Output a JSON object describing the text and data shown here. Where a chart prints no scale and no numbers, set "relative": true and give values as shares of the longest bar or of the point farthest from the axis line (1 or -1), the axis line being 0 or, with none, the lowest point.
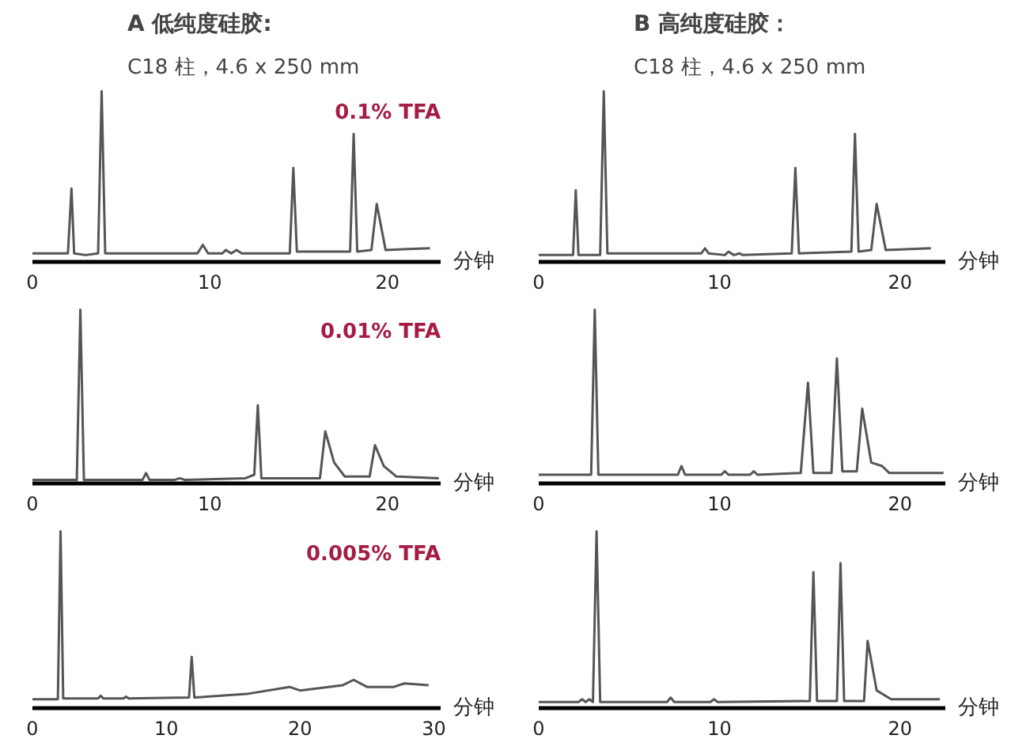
{
  "chart_data": [
    {
      "type": "line",
      "relative": true,
      "title": "A 低纯度硅胶:",
      "subtitle": "C18 柱，4.6 x 250 mm",
      "annotations": [
        "0.1% TFA"
      ],
      "xlabel": "分钟",
      "xlim": [
        0,
        23
      ],
      "xticks": [
        0,
        10,
        20
      ],
      "series": [
        {
          "color": "#555555",
          "x": [
            0,
            2.0,
            2.2,
            2.35,
            3.0,
            3.7,
            3.9,
            4.1,
            9.3,
            9.6,
            9.9,
            10.7,
            10.9,
            11.2,
            11.5,
            11.8,
            14.5,
            14.7,
            14.9,
            17.9,
            18.1,
            18.3,
            19.1,
            19.4,
            19.9,
            22.4
          ],
          "values": [
            0.05,
            0.05,
            0.43,
            0.05,
            0.04,
            0.05,
            1,
            0.05,
            0.05,
            0.1,
            0.05,
            0.05,
            0.07,
            0.05,
            0.07,
            0.05,
            0.05,
            0.55,
            0.06,
            0.06,
            0.75,
            0.06,
            0.07,
            0.34,
            0.07,
            0.08
          ]
        }
      ]
    },
    {
      "type": "line",
      "relative": true,
      "title": "B 高纯度硅胶：",
      "subtitle": "C18 柱，4.6 x 250 mm",
      "xlabel": "分钟",
      "xlim": [
        0,
        22.5
      ],
      "xticks": [
        0,
        10,
        20
      ],
      "series": [
        {
          "color": "#555555",
          "x": [
            0,
            1.9,
            2.05,
            2.2,
            3.4,
            3.6,
            3.8,
            9.0,
            9.2,
            9.4,
            10.3,
            10.5,
            10.8,
            11.1,
            11.3,
            14.0,
            14.2,
            14.4,
            17.3,
            17.5,
            17.7,
            18.4,
            18.7,
            19.2,
            21.7
          ],
          "values": [
            0.04,
            0.04,
            0.42,
            0.04,
            0.04,
            1,
            0.05,
            0.05,
            0.08,
            0.05,
            0.04,
            0.06,
            0.04,
            0.05,
            0.04,
            0.05,
            0.55,
            0.05,
            0.06,
            0.75,
            0.06,
            0.07,
            0.34,
            0.07,
            0.08
          ]
        }
      ]
    },
    {
      "type": "line",
      "relative": true,
      "annotations": [
        "0.01% TFA"
      ],
      "xlabel": "分钟",
      "xlim": [
        0,
        23
      ],
      "xticks": [
        0,
        10,
        20
      ],
      "series": [
        {
          "color": "#555555",
          "x": [
            0,
            2.5,
            2.7,
            2.9,
            6.2,
            6.4,
            6.6,
            8.0,
            8.3,
            8.6,
            12.0,
            12.5,
            12.7,
            12.9,
            16.2,
            16.5,
            17.0,
            17.6,
            19.0,
            19.3,
            19.8,
            20.5,
            22.9
          ],
          "values": [
            0.02,
            0.02,
            1,
            0.02,
            0.02,
            0.06,
            0.02,
            0.02,
            0.03,
            0.02,
            0.03,
            0.05,
            0.45,
            0.03,
            0.03,
            0.3,
            0.12,
            0.04,
            0.04,
            0.22,
            0.1,
            0.04,
            0.03
          ]
        }
      ]
    },
    {
      "type": "line",
      "relative": true,
      "xlabel": "分钟",
      "xlim": [
        0,
        22.5
      ],
      "xticks": [
        0,
        10,
        20
      ],
      "series": [
        {
          "color": "#555555",
          "x": [
            0,
            2.9,
            3.1,
            3.3,
            7.7,
            7.9,
            8.1,
            10.1,
            10.3,
            10.5,
            11.7,
            11.9,
            12.1,
            14.5,
            14.9,
            15.2,
            16.2,
            16.5,
            16.8,
            17.6,
            17.9,
            18.4,
            19.0,
            19.4,
            22.4
          ],
          "values": [
            0.05,
            0.05,
            1,
            0.05,
            0.05,
            0.1,
            0.05,
            0.05,
            0.07,
            0.05,
            0.05,
            0.07,
            0.05,
            0.06,
            0.58,
            0.06,
            0.06,
            0.72,
            0.07,
            0.07,
            0.43,
            0.12,
            0.1,
            0.06,
            0.06
          ]
        }
      ]
    },
    {
      "type": "line",
      "relative": true,
      "annotations": [
        "0.005% TFA"
      ],
      "xlabel": "分钟",
      "xlim": [
        0,
        30.5
      ],
      "xticks": [
        0,
        10,
        20,
        30
      ],
      "series": [
        {
          "color": "#555555",
          "x": [
            0,
            1.9,
            2.1,
            2.3,
            4.9,
            5.1,
            5.3,
            6.8,
            7.0,
            7.2,
            11.7,
            11.9,
            12.1,
            16,
            19.2,
            20,
            23.2,
            24.0,
            25,
            27,
            27.8,
            29.6
          ],
          "values": [
            0.05,
            0.05,
            1,
            0.055,
            0.055,
            0.07,
            0.055,
            0.055,
            0.065,
            0.055,
            0.06,
            0.29,
            0.06,
            0.08,
            0.12,
            0.1,
            0.13,
            0.16,
            0.12,
            0.12,
            0.14,
            0.13
          ]
        }
      ]
    },
    {
      "type": "line",
      "relative": true,
      "xlabel": "分钟",
      "xlim": [
        0,
        22.5
      ],
      "xticks": [
        0,
        10,
        20
      ],
      "series": [
        {
          "color": "#555555",
          "x": [
            0,
            2.2,
            2.4,
            2.6,
            2.8,
            3.0,
            3.2,
            3.4,
            7.1,
            7.3,
            7.5,
            9.5,
            9.7,
            9.9,
            15.0,
            15.2,
            15.4,
            16.5,
            16.7,
            16.9,
            18.0,
            18.2,
            18.7,
            19.5,
            22.2
          ],
          "values": [
            0.035,
            0.035,
            0.05,
            0.035,
            0.05,
            0.035,
            1,
            0.035,
            0.035,
            0.06,
            0.035,
            0.035,
            0.05,
            0.035,
            0.04,
            0.77,
            0.04,
            0.04,
            0.82,
            0.04,
            0.04,
            0.38,
            0.1,
            0.05,
            0.05
          ]
        }
      ]
    }
  ]
}
